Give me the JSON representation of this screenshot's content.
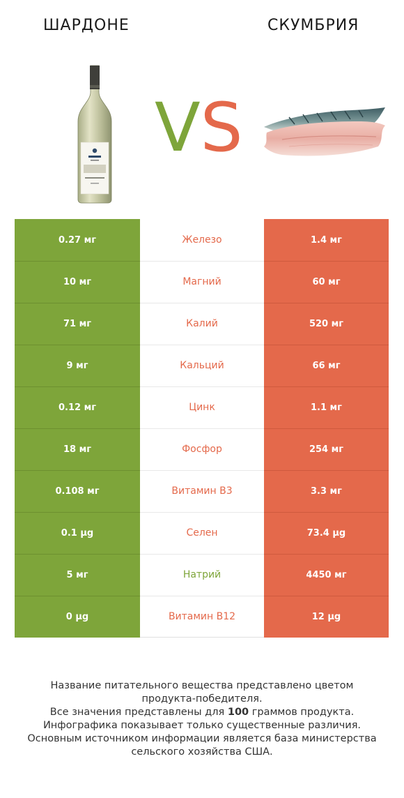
{
  "header": {
    "left_title": "ШАРДОНЕ",
    "right_title": "СКУМБРИЯ",
    "vs_v": "V",
    "vs_s": "S"
  },
  "colors": {
    "left": "#7ea53a",
    "right": "#e4694b",
    "text": "#1a1a1a"
  },
  "icons": {
    "left": "wine-bottle-icon",
    "right": "mackerel-fillet-icon"
  },
  "rows": [
    {
      "left": "0.27 мг",
      "nutrient": "Железо",
      "right": "1.4 мг",
      "winner": "right"
    },
    {
      "left": "10 мг",
      "nutrient": "Магний",
      "right": "60 мг",
      "winner": "right"
    },
    {
      "left": "71 мг",
      "nutrient": "Калий",
      "right": "520 мг",
      "winner": "right"
    },
    {
      "left": "9 мг",
      "nutrient": "Кальций",
      "right": "66 мг",
      "winner": "right"
    },
    {
      "left": "0.12 мг",
      "nutrient": "Цинк",
      "right": "1.1 мг",
      "winner": "right"
    },
    {
      "left": "18 мг",
      "nutrient": "Фосфор",
      "right": "254 мг",
      "winner": "right"
    },
    {
      "left": "0.108 мг",
      "nutrient": "Витамин B3",
      "right": "3.3 мг",
      "winner": "right"
    },
    {
      "left": "0.1 µg",
      "nutrient": "Селен",
      "right": "73.4 µg",
      "winner": "right"
    },
    {
      "left": "5 мг",
      "nutrient": "Натрий",
      "right": "4450 мг",
      "winner": "left"
    },
    {
      "left": "0 µg",
      "nutrient": "Витамин B12",
      "right": "12 µg",
      "winner": "right"
    }
  ],
  "footnote": {
    "line1": "Название питательного вещества представлено цветом",
    "line2": "продукта-победителя.",
    "line3_pre": "Все значения представлены для ",
    "line3_bold": "100",
    "line3_post": " граммов продукта.",
    "line4": "Инфографика показывает только существенные различия.",
    "line5": "Основным источником информации является база министерства",
    "line6": "сельского хозяйства США."
  }
}
